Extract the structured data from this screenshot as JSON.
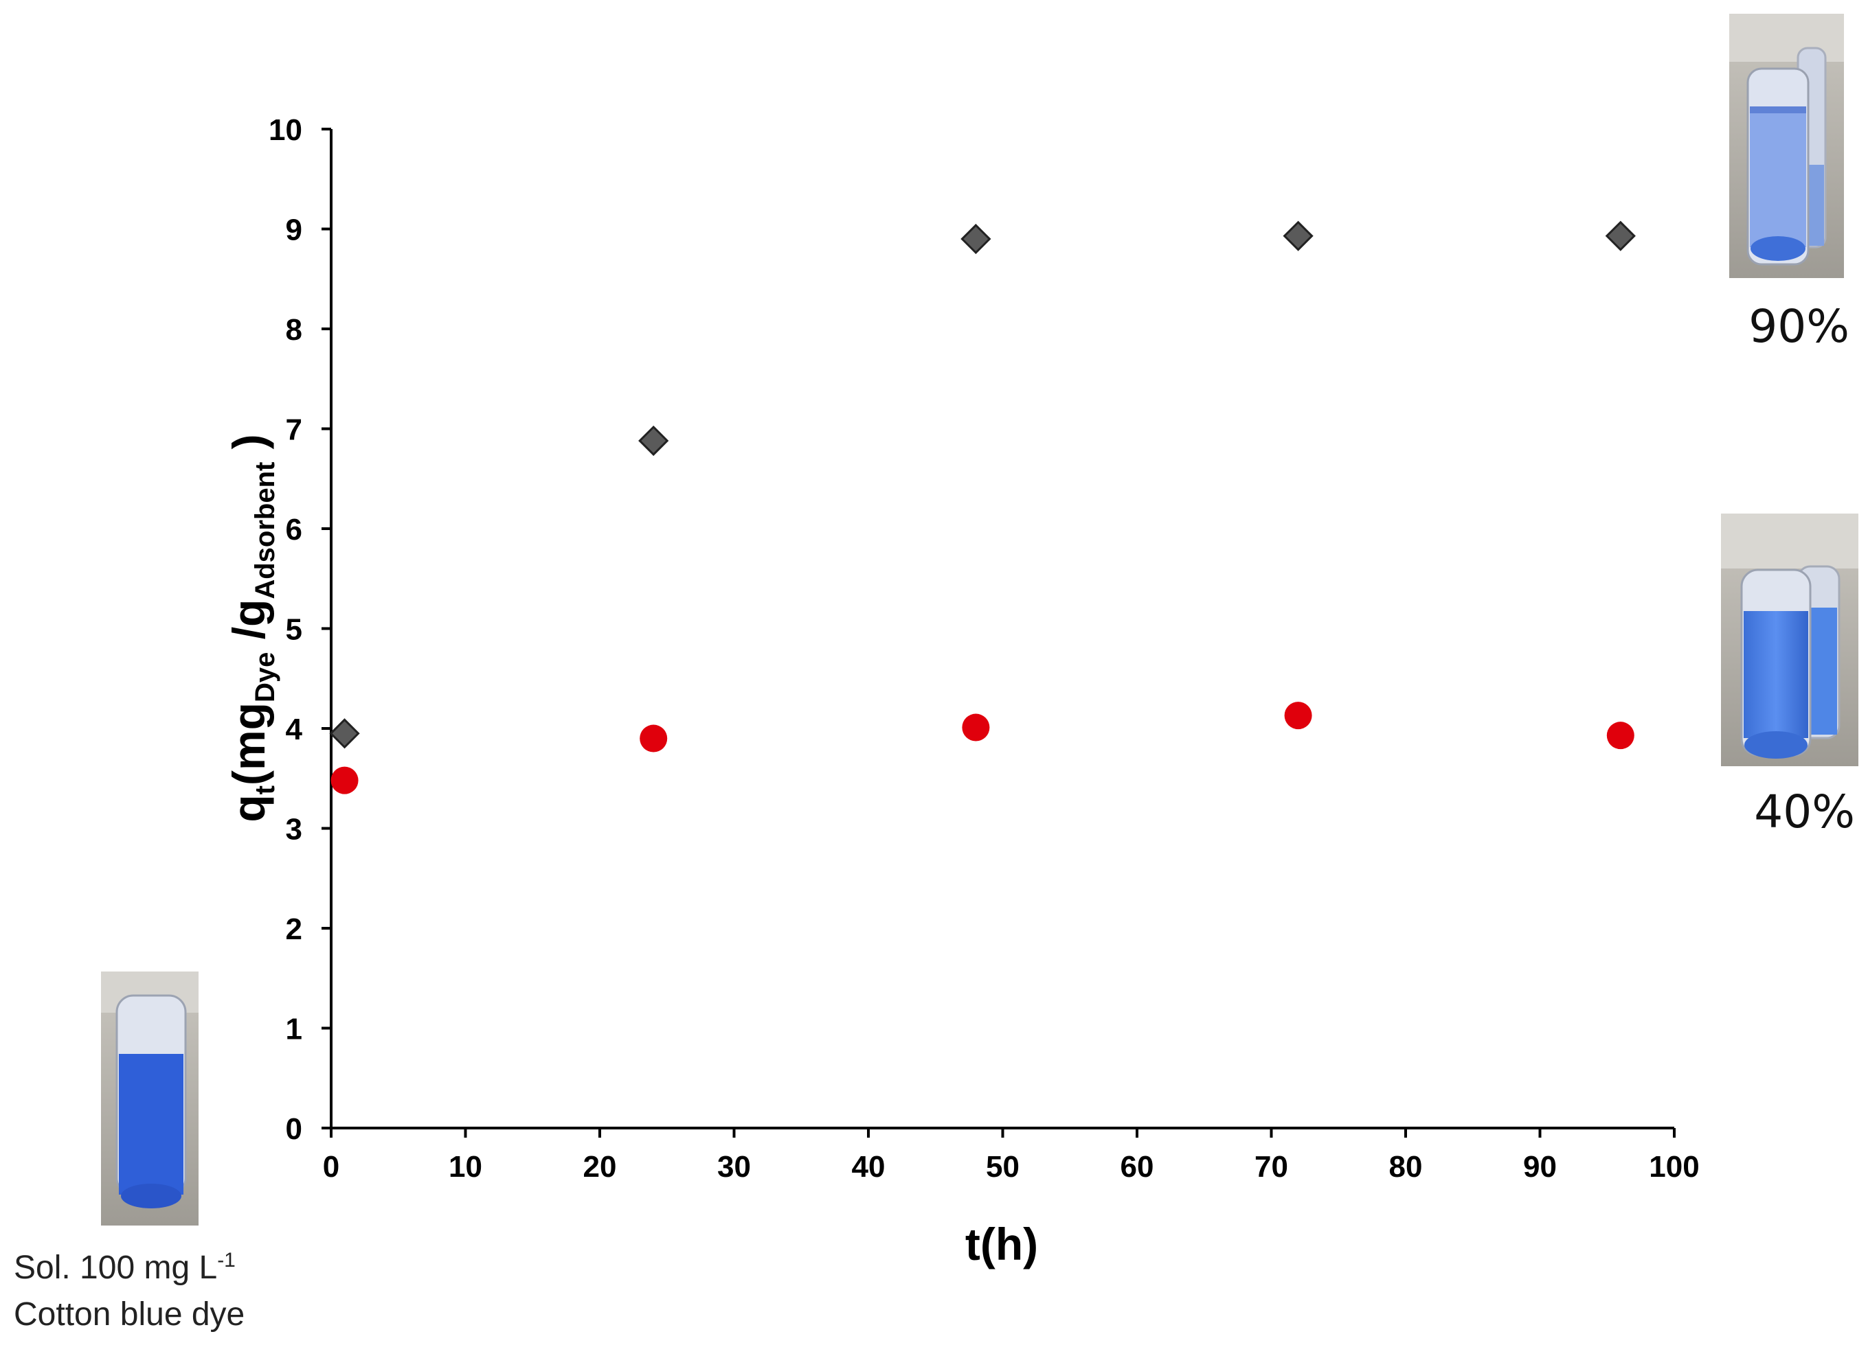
{
  "chart_data": {
    "type": "scatter",
    "xlabel": "t(h)",
    "ylabel": {
      "main": "q",
      "sub_t": "t",
      "open": "(mg",
      "sub_dye": "Dye",
      "slash": " /g",
      "sub_ads": "Adsorbent",
      "close": " )"
    },
    "xlim": [
      0,
      100
    ],
    "ylim": [
      0,
      10
    ],
    "x_ticks": [
      "0",
      "10",
      "20",
      "30",
      "40",
      "50",
      "60",
      "70",
      "80",
      "90",
      "100"
    ],
    "y_ticks": [
      "0",
      "1",
      "2",
      "3",
      "4",
      "5",
      "6",
      "7",
      "8",
      "9",
      "10"
    ],
    "grid": false,
    "series": [
      {
        "marker": "diamond",
        "color": "#5a5a5a",
        "points": [
          {
            "x": 1,
            "y": 3.95
          },
          {
            "x": 24,
            "y": 6.88
          },
          {
            "x": 48,
            "y": 8.9
          },
          {
            "x": 72,
            "y": 8.93
          },
          {
            "x": 96,
            "y": 8.93
          }
        ]
      },
      {
        "marker": "circle",
        "color": "#e0000c",
        "points": [
          {
            "x": 1,
            "y": 3.48
          },
          {
            "x": 24,
            "y": 3.9
          },
          {
            "x": 48,
            "y": 4.01
          },
          {
            "x": 72,
            "y": 4.13
          },
          {
            "x": 96,
            "y": 3.93
          }
        ]
      }
    ]
  },
  "annotations": {
    "top_percent": "90%",
    "mid_percent": "40%",
    "solution_line1_prefix": "Sol. 100 mg L",
    "solution_line1_sup": "-1",
    "solution_line2": "Cotton blue dye"
  }
}
